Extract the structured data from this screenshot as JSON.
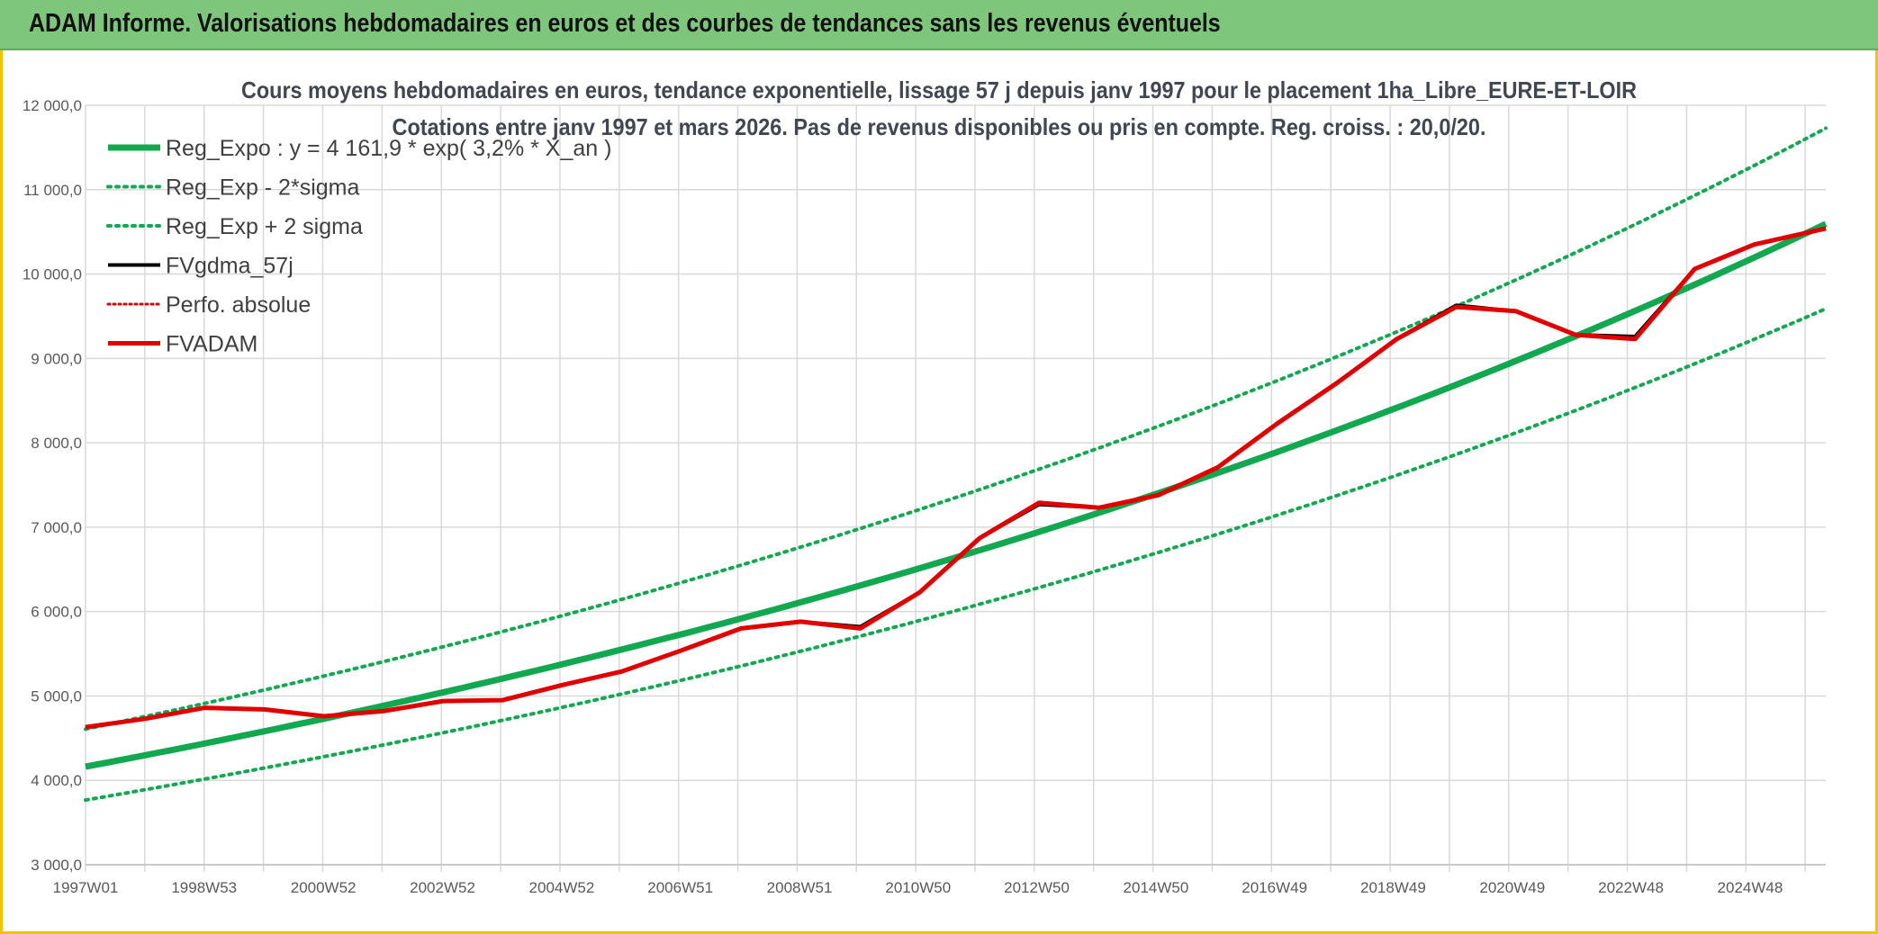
{
  "header": {
    "title": "ADAM Informe. Valorisations hebdomadaires en euros et des courbes de tendances sans les revenus éventuels"
  },
  "colors": {
    "header_bg": "#7dc67b",
    "frame": "#f2c400",
    "reg_expo": "#12a850",
    "reg_bands": "#12a850",
    "fvgdma": "#000000",
    "perfo": "#e00000",
    "fvadam": "#e00000"
  },
  "chart_data": {
    "type": "line",
    "title": "Cours moyens hebdomadaires en euros, tendance exponentielle, lissage 57 j depuis janv 1997 pour le placement 1ha_Libre_EURE-ET-LOIR",
    "subtitle": "Cotations entre janv 1997 et mars 2026. Pas de revenus disponibles ou pris en compte. Reg. croiss. : 20,0/20.",
    "xlabel": "",
    "ylabel": "",
    "ylim": [
      3000,
      12000
    ],
    "yticks": [
      3000,
      4000,
      5000,
      6000,
      7000,
      8000,
      9000,
      10000,
      11000,
      12000
    ],
    "ytick_labels": [
      "3 000,0",
      "4 000,0",
      "5 000,0",
      "6 000,0",
      "7 000,0",
      "8 000,0",
      "9 000,0",
      "10 000,0",
      "11 000,0",
      "12 000,0"
    ],
    "xlim": [
      1997.0,
      2026.2
    ],
    "xticks": [
      1997.0,
      1998.99,
      2000.99,
      2002.99,
      2004.99,
      2006.98,
      2008.98,
      2010.97,
      2012.96,
      2014.96,
      2016.95,
      2018.94,
      2020.94,
      2022.93,
      2024.93
    ],
    "xtick_labels": [
      "1997W01",
      "1998W53",
      "2000W52",
      "2002W52",
      "2004W52",
      "2006W51",
      "2008W51",
      "2010W50",
      "2012W50",
      "2014W50",
      "2016W49",
      "2018W49",
      "2020W49",
      "2022W48",
      "2024W48"
    ],
    "grid": true,
    "legend_position": "top-left",
    "legend": [
      "Reg_Expo : y = 4 161,9 * exp( 3,2% *  X_an )",
      "Reg_Exp - 2*sigma",
      "Reg_Exp + 2 sigma",
      "FVgdma_57j",
      "Perfo. absolue",
      "FVADAM"
    ],
    "regression": {
      "a": 4161.9,
      "rate": 0.032,
      "low_factor": 0.905,
      "high_factor": 1.107
    },
    "series": [
      {
        "name": "FVADAM",
        "x": [
          1997.0,
          1998.0,
          1999.0,
          2000.0,
          2001.0,
          2002.0,
          2003.0,
          2004.0,
          2005.0,
          2006.0,
          2007.0,
          2008.0,
          2009.0,
          2010.0,
          2011.0,
          2012.0,
          2013.0,
          2014.0,
          2015.0,
          2016.0,
          2017.0,
          2018.0,
          2019.0,
          2020.0,
          2021.0,
          2022.0,
          2023.0,
          2024.0,
          2025.0,
          2026.2
        ],
        "values": [
          4630,
          4730,
          4860,
          4840,
          4760,
          4820,
          4940,
          4950,
          5130,
          5290,
          5540,
          5800,
          5880,
          5800,
          6230,
          6870,
          7290,
          7230,
          7380,
          7710,
          8230,
          8710,
          9230,
          9610,
          9560,
          9280,
          9230,
          10060,
          10350,
          10540
        ]
      },
      {
        "name": "FVgdma_57j",
        "x": [
          1997.0,
          1998.0,
          1999.0,
          2000.0,
          2001.0,
          2002.0,
          2003.0,
          2004.0,
          2005.0,
          2006.0,
          2007.0,
          2008.0,
          2009.0,
          2010.0,
          2011.0,
          2012.0,
          2013.0,
          2014.0,
          2015.0,
          2016.0,
          2017.0,
          2018.0,
          2019.0,
          2020.0,
          2021.0,
          2022.0,
          2023.0,
          2024.0,
          2025.0,
          2026.2
        ],
        "values": [
          4630,
          4730,
          4860,
          4840,
          4760,
          4820,
          4940,
          4950,
          5130,
          5290,
          5540,
          5800,
          5880,
          5820,
          6230,
          6870,
          7270,
          7230,
          7380,
          7710,
          8230,
          8710,
          9230,
          9630,
          9560,
          9280,
          9260,
          10060,
          10350,
          10540
        ]
      }
    ]
  }
}
